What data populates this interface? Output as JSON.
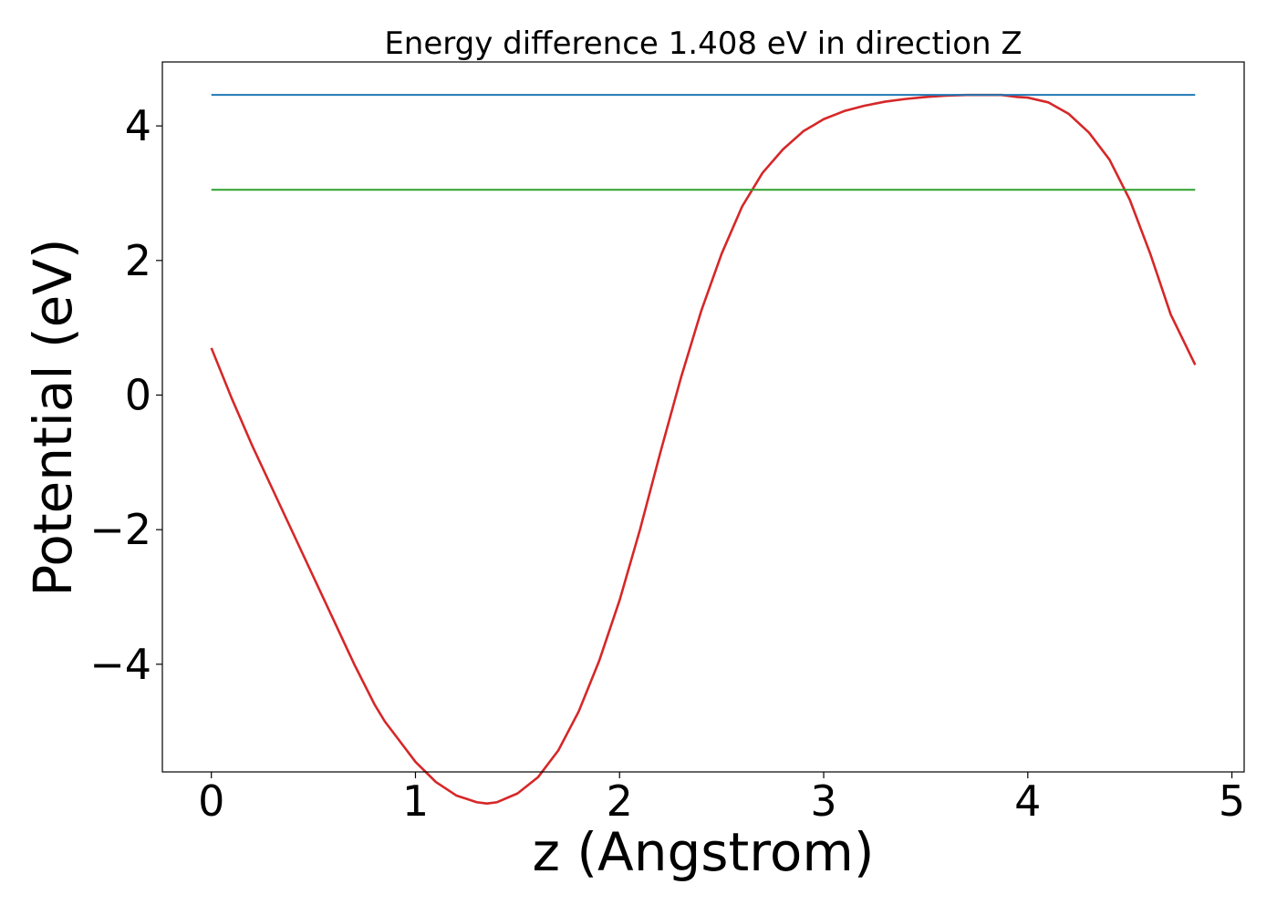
{
  "chart_data": {
    "type": "line",
    "title": "Energy difference 1.408 eV in direction Z",
    "xlabel": "z (Angstrom)",
    "ylabel": "Potential (eV)",
    "xlim": [
      -0.24,
      5.06
    ],
    "ylim": [
      -5.6,
      4.95
    ],
    "xticks": [
      0,
      1,
      2,
      3,
      4,
      5
    ],
    "xtick_labels": [
      "0",
      "1",
      "2",
      "3",
      "4",
      "5"
    ],
    "yticks": [
      -4,
      -2,
      0,
      2,
      4
    ],
    "ytick_labels": [
      "−4",
      "−2",
      "0",
      "2",
      "4"
    ],
    "grid": false,
    "legend": "none",
    "series": [
      {
        "color": "#d62728",
        "x": [
          0,
          0.1,
          0.2,
          0.3,
          0.4,
          0.5,
          0.6,
          0.7,
          0.8,
          0.85,
          0.9,
          1.0,
          1.1,
          1.2,
          1.3,
          1.35,
          1.4,
          1.5,
          1.6,
          1.7,
          1.8,
          1.9,
          2.0,
          2.1,
          2.2,
          2.3,
          2.4,
          2.5,
          2.6,
          2.7,
          2.8,
          2.9,
          3.0,
          3.1,
          3.2,
          3.3,
          3.4,
          3.5,
          3.6,
          3.7,
          3.8,
          3.87,
          3.95,
          4.0,
          4.1,
          4.2,
          4.3,
          4.4,
          4.5,
          4.6,
          4.7,
          4.82
        ],
        "y": [
          0.7,
          -0.05,
          -0.75,
          -1.4,
          -2.05,
          -2.7,
          -3.35,
          -4.0,
          -4.6,
          -4.85,
          -5.05,
          -5.45,
          -5.75,
          -5.95,
          -6.05,
          -6.07,
          -6.05,
          -5.92,
          -5.68,
          -5.28,
          -4.7,
          -3.95,
          -3.05,
          -2.0,
          -0.85,
          0.25,
          1.25,
          2.1,
          2.8,
          3.3,
          3.65,
          3.92,
          4.1,
          4.22,
          4.3,
          4.36,
          4.4,
          4.43,
          4.45,
          4.46,
          4.46,
          4.46,
          4.43,
          4.42,
          4.35,
          4.18,
          3.9,
          3.5,
          2.9,
          2.1,
          1.2,
          0.45
        ]
      },
      {
        "color": "#1f77b4",
        "x": [
          0,
          4.82
        ],
        "y": [
          4.46,
          4.46
        ]
      },
      {
        "color": "#2ca02c",
        "x": [
          0,
          4.82
        ],
        "y": [
          3.05,
          3.05
        ]
      }
    ]
  }
}
